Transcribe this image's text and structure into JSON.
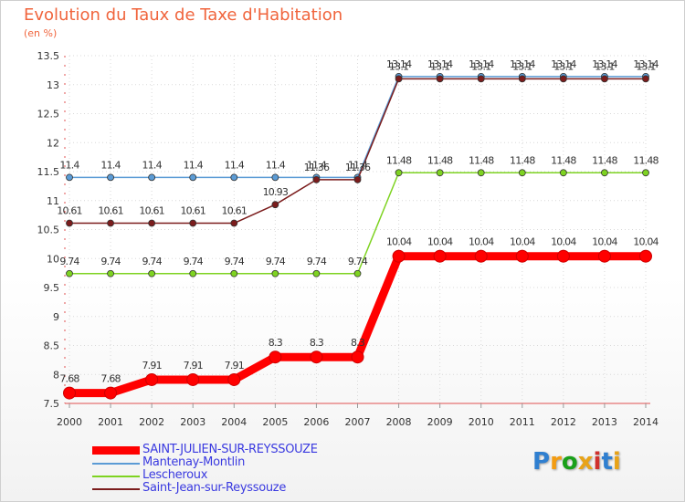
{
  "title": "Evolution du Taux de Taxe d'Habitation",
  "subtitle": "(en %)",
  "logo": {
    "text": "Proxiti",
    "colors": [
      "#2f7fd0",
      "#f39c12",
      "#1aa01a",
      "#e8a317",
      "#d0312d",
      "#2f7fd0",
      "#e8a317"
    ]
  },
  "chart_data": {
    "type": "line",
    "title": "Evolution du Taux de Taxe d'Habitation",
    "ylabel": "(en %)",
    "xlabel": "",
    "x": [
      "2000",
      "2001",
      "2002",
      "2003",
      "2004",
      "2005",
      "2006",
      "2007",
      "2008",
      "2009",
      "2010",
      "2011",
      "2012",
      "2013",
      "2014"
    ],
    "ylim": [
      7.5,
      13.5
    ],
    "yticks": [
      "7.5",
      "8",
      "8.5",
      "9",
      "9.5",
      "10",
      "10.5",
      "11",
      "11.5",
      "12",
      "12.5",
      "13",
      "13.5"
    ],
    "series": [
      {
        "name": "SAINT-JULIEN-SUR-REYSSOUZE",
        "color": "#ff0000",
        "values": [
          7.68,
          7.68,
          7.91,
          7.91,
          7.91,
          8.3,
          8.3,
          8.3,
          10.04,
          10.04,
          10.04,
          10.04,
          10.04,
          10.04,
          10.04
        ],
        "labels": [
          "7.68",
          "7.68",
          "7.91",
          "7.91",
          "7.91",
          "8.3",
          "8.3",
          "8.3",
          "10.04",
          "10.04",
          "10.04",
          "10.04",
          "10.04",
          "10.04",
          "10.04"
        ]
      },
      {
        "name": "Mantenay-Montlin",
        "color": "#5b9bd5",
        "values": [
          11.4,
          11.4,
          11.4,
          11.4,
          11.4,
          11.4,
          11.4,
          11.4,
          13.14,
          13.14,
          13.14,
          13.14,
          13.14,
          13.14,
          13.14
        ],
        "labels": [
          "11.4",
          "11.4",
          "11.4",
          "11.4",
          "11.4",
          "11.4",
          "11.4",
          "11.4",
          "13.14",
          "13.14",
          "13.14",
          "13.14",
          "13.14",
          "13.14",
          "13.14"
        ]
      },
      {
        "name": "Lescheroux",
        "color": "#7ed321",
        "values": [
          9.74,
          9.74,
          9.74,
          9.74,
          9.74,
          9.74,
          9.74,
          9.74,
          11.48,
          11.48,
          11.48,
          11.48,
          11.48,
          11.48,
          11.48
        ],
        "labels": [
          "9.74",
          "9.74",
          "9.74",
          "9.74",
          "9.74",
          "9.74",
          "9.74",
          "9.74",
          "11.48",
          "11.48",
          "11.48",
          "11.48",
          "11.48",
          "11.48",
          "11.48"
        ]
      },
      {
        "name": "Saint-Jean-sur-Reyssouze",
        "color": "#7b1c1c",
        "values": [
          10.61,
          10.61,
          10.61,
          10.61,
          10.61,
          10.93,
          11.36,
          11.36,
          13.1,
          13.1,
          13.1,
          13.1,
          13.1,
          13.1,
          13.1
        ],
        "labels": [
          "10.61",
          "10.61",
          "10.61",
          "10.61",
          "10.61",
          "10.93",
          "11.36",
          "11.36",
          "13.1",
          "13.1",
          "13.1",
          "13.1",
          "13.1",
          "13.1",
          "13.1"
        ]
      }
    ]
  }
}
